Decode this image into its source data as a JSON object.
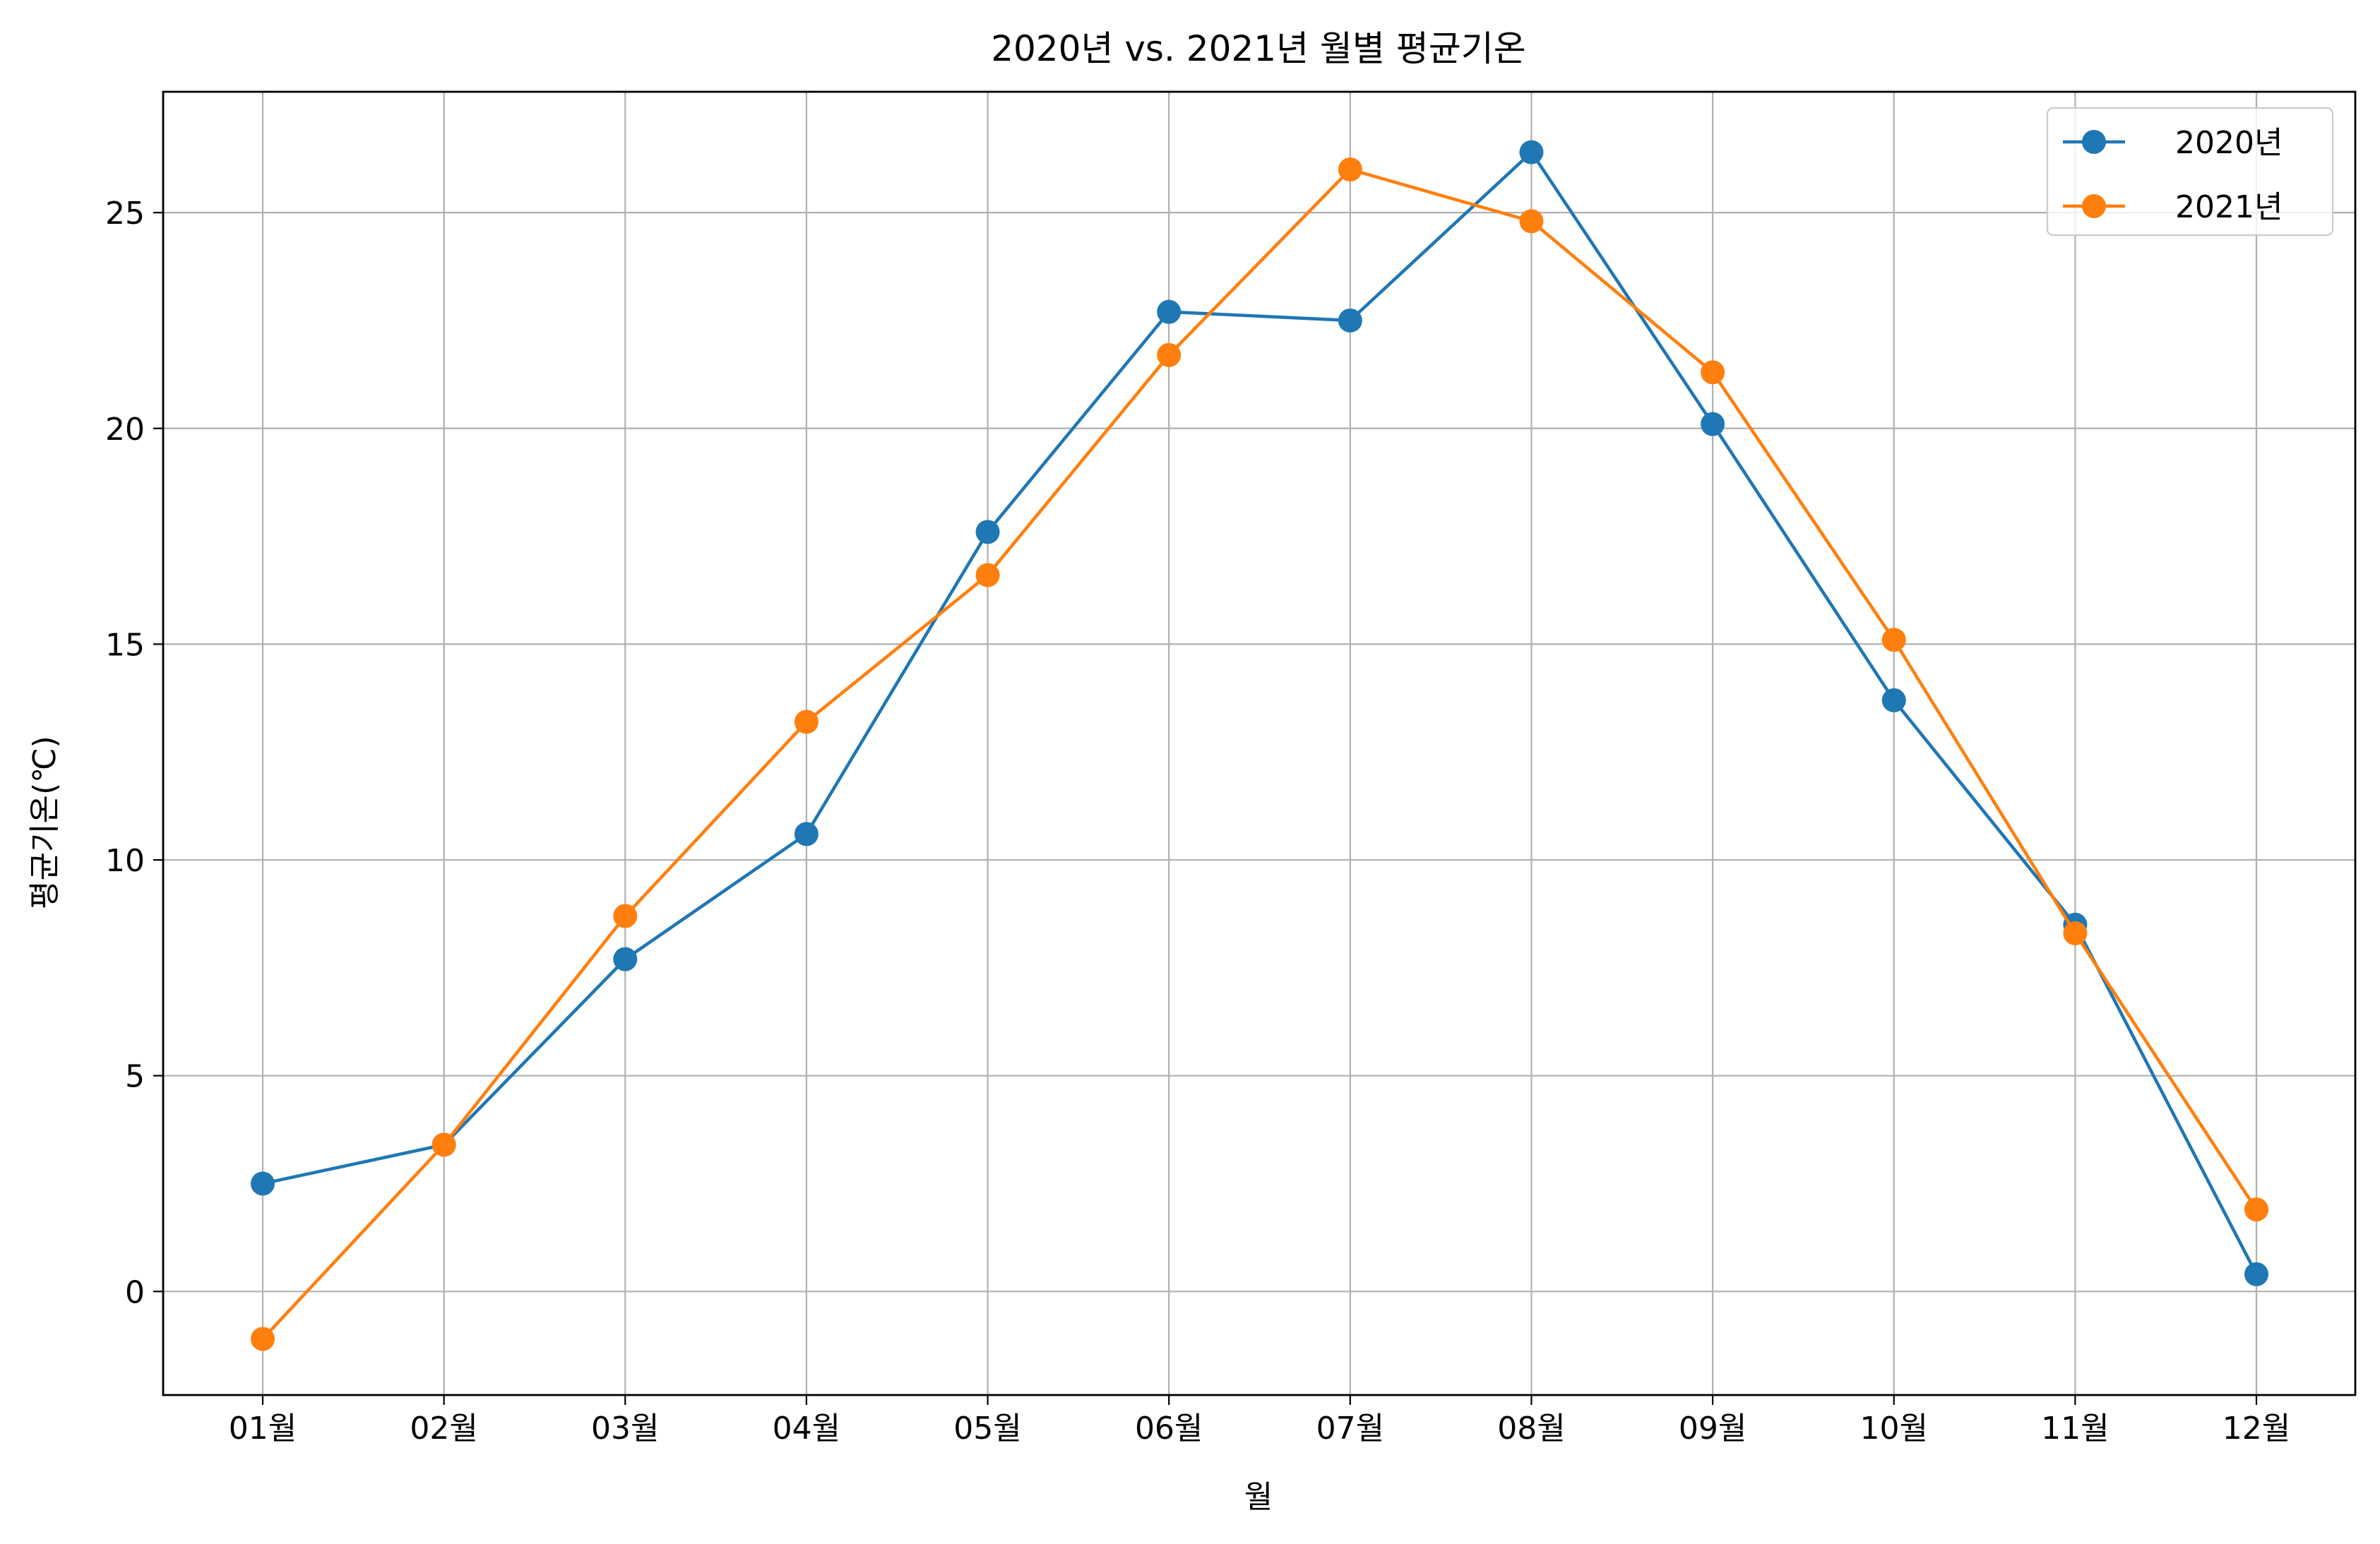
{
  "chart_data": {
    "type": "line",
    "title": "2020년 vs. 2021년 월별 평균기온",
    "xlabel": "월",
    "ylabel": "평균기온(℃)",
    "categories": [
      "01월",
      "02월",
      "03월",
      "04월",
      "05월",
      "06월",
      "07월",
      "08월",
      "09월",
      "10월",
      "11월",
      "12월"
    ],
    "ylim": [
      -2.4,
      27.8
    ],
    "yticks": [
      0,
      5,
      10,
      15,
      20,
      25
    ],
    "grid": true,
    "legend_position": "top-right",
    "series": [
      {
        "name": "2020년",
        "color": "#1f77b4",
        "marker": "circle",
        "values": [
          2.5,
          3.4,
          7.7,
          10.6,
          17.6,
          22.7,
          22.5,
          26.4,
          20.1,
          13.7,
          8.5,
          0.4
        ]
      },
      {
        "name": "2021년",
        "color": "#ff7f0e",
        "marker": "circle",
        "values": [
          -1.1,
          3.4,
          8.7,
          13.2,
          16.6,
          21.7,
          26.0,
          24.8,
          21.3,
          15.1,
          8.3,
          1.9
        ]
      }
    ]
  }
}
